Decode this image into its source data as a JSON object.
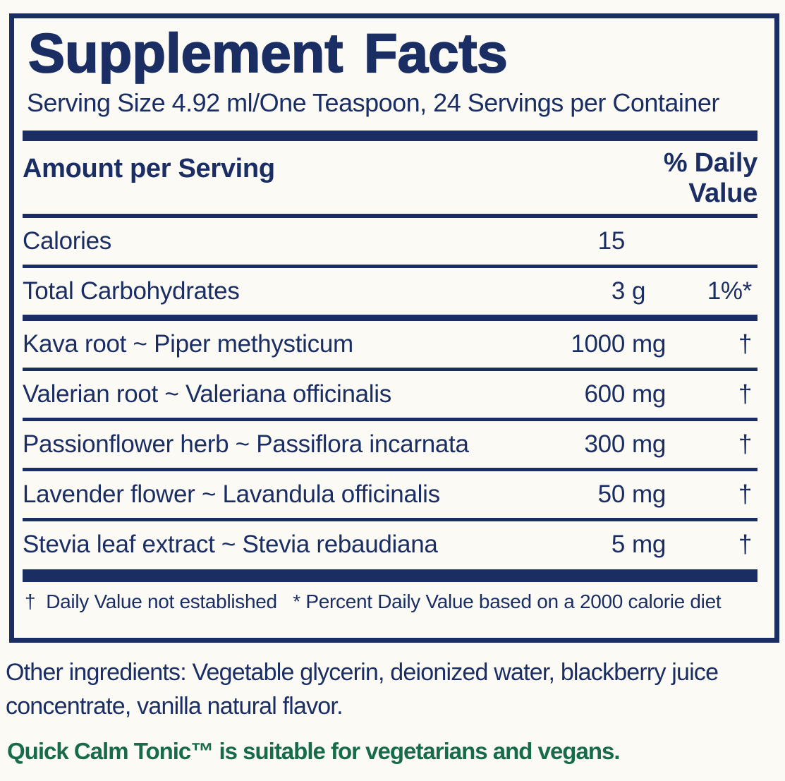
{
  "colors": {
    "navy": "#1b2e64",
    "green": "#176a4a",
    "background": "#fbfaf5"
  },
  "panel": {
    "title": "Supplement Facts",
    "serving_line": "Serving Size 4.92 ml/One Teaspoon, 24 Servings per Container",
    "header": {
      "amount_label": "Amount per Serving",
      "dv_line1": "% Daily",
      "dv_line2": "Value"
    },
    "rows": [
      {
        "name": "Calories",
        "amount": "15",
        "unit": "",
        "dv": ""
      },
      {
        "name": "Total Carbohydrates",
        "amount": "3",
        "unit": "g",
        "dv": "1%*"
      },
      {
        "name": "Kava root ~ Piper methysticum",
        "amount": "1000",
        "unit": "mg",
        "dv": "†"
      },
      {
        "name": "Valerian root ~ Valeriana officinalis",
        "amount": "600",
        "unit": "mg",
        "dv": "†"
      },
      {
        "name": "Passionflower herb ~ Passiflora incarnata",
        "amount": "300",
        "unit": "mg",
        "dv": "†"
      },
      {
        "name": "Lavender flower ~ Lavandula officinalis",
        "amount": "50",
        "unit": "mg",
        "dv": "†"
      },
      {
        "name": "Stevia leaf extract ~ Stevia rebaudiana",
        "amount": "5",
        "unit": "mg",
        "dv": "†"
      }
    ],
    "footnote": "†  Daily Value not established   * Percent Daily Value based on a 2000 calorie diet"
  },
  "below_panel": {
    "other_ingredients": "Other ingredients: Vegetable glycerin, deionized water, blackberry juice concentrate, vanilla natural flavor.",
    "vegan_note": "Quick Calm Tonic™ is suitable for vegetarians and vegans."
  }
}
